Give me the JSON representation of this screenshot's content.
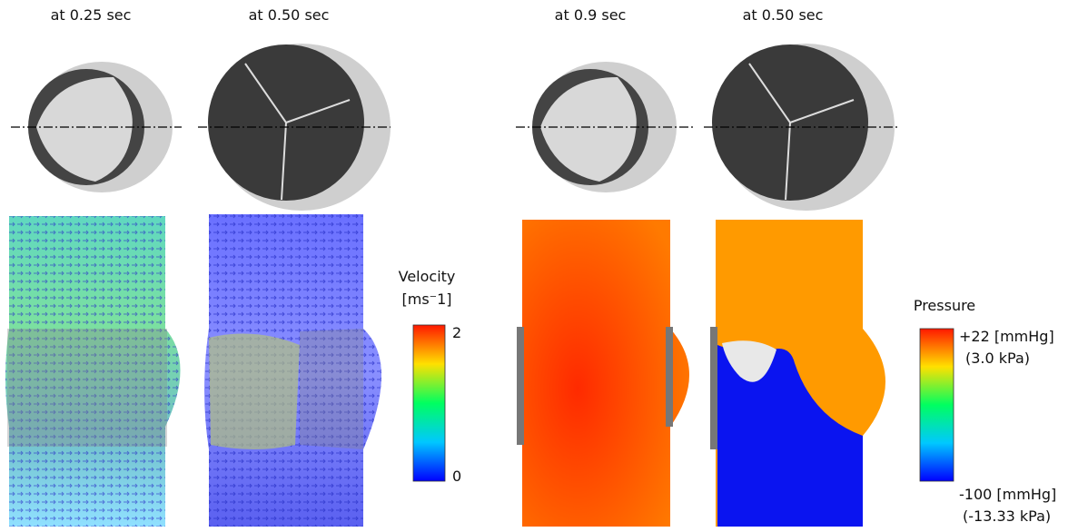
{
  "panels": [
    {
      "title": "at 0.25 sec"
    },
    {
      "title": "at 0.50 sec"
    },
    {
      "title": "at 0.9 sec"
    },
    {
      "title": "at 0.50 sec"
    }
  ],
  "velocity_colorbar": {
    "title": "Velocity",
    "unit": "[ms⁻1]",
    "max_label": "2",
    "min_label": "0"
  },
  "pressure_colorbar": {
    "title": "Pressure",
    "max_label": "+22 [mmHg]",
    "max_sub": "(3.0 kPa)",
    "min_label": "-100 [mmHg]",
    "min_sub": "(-13.33 kPa)"
  }
}
